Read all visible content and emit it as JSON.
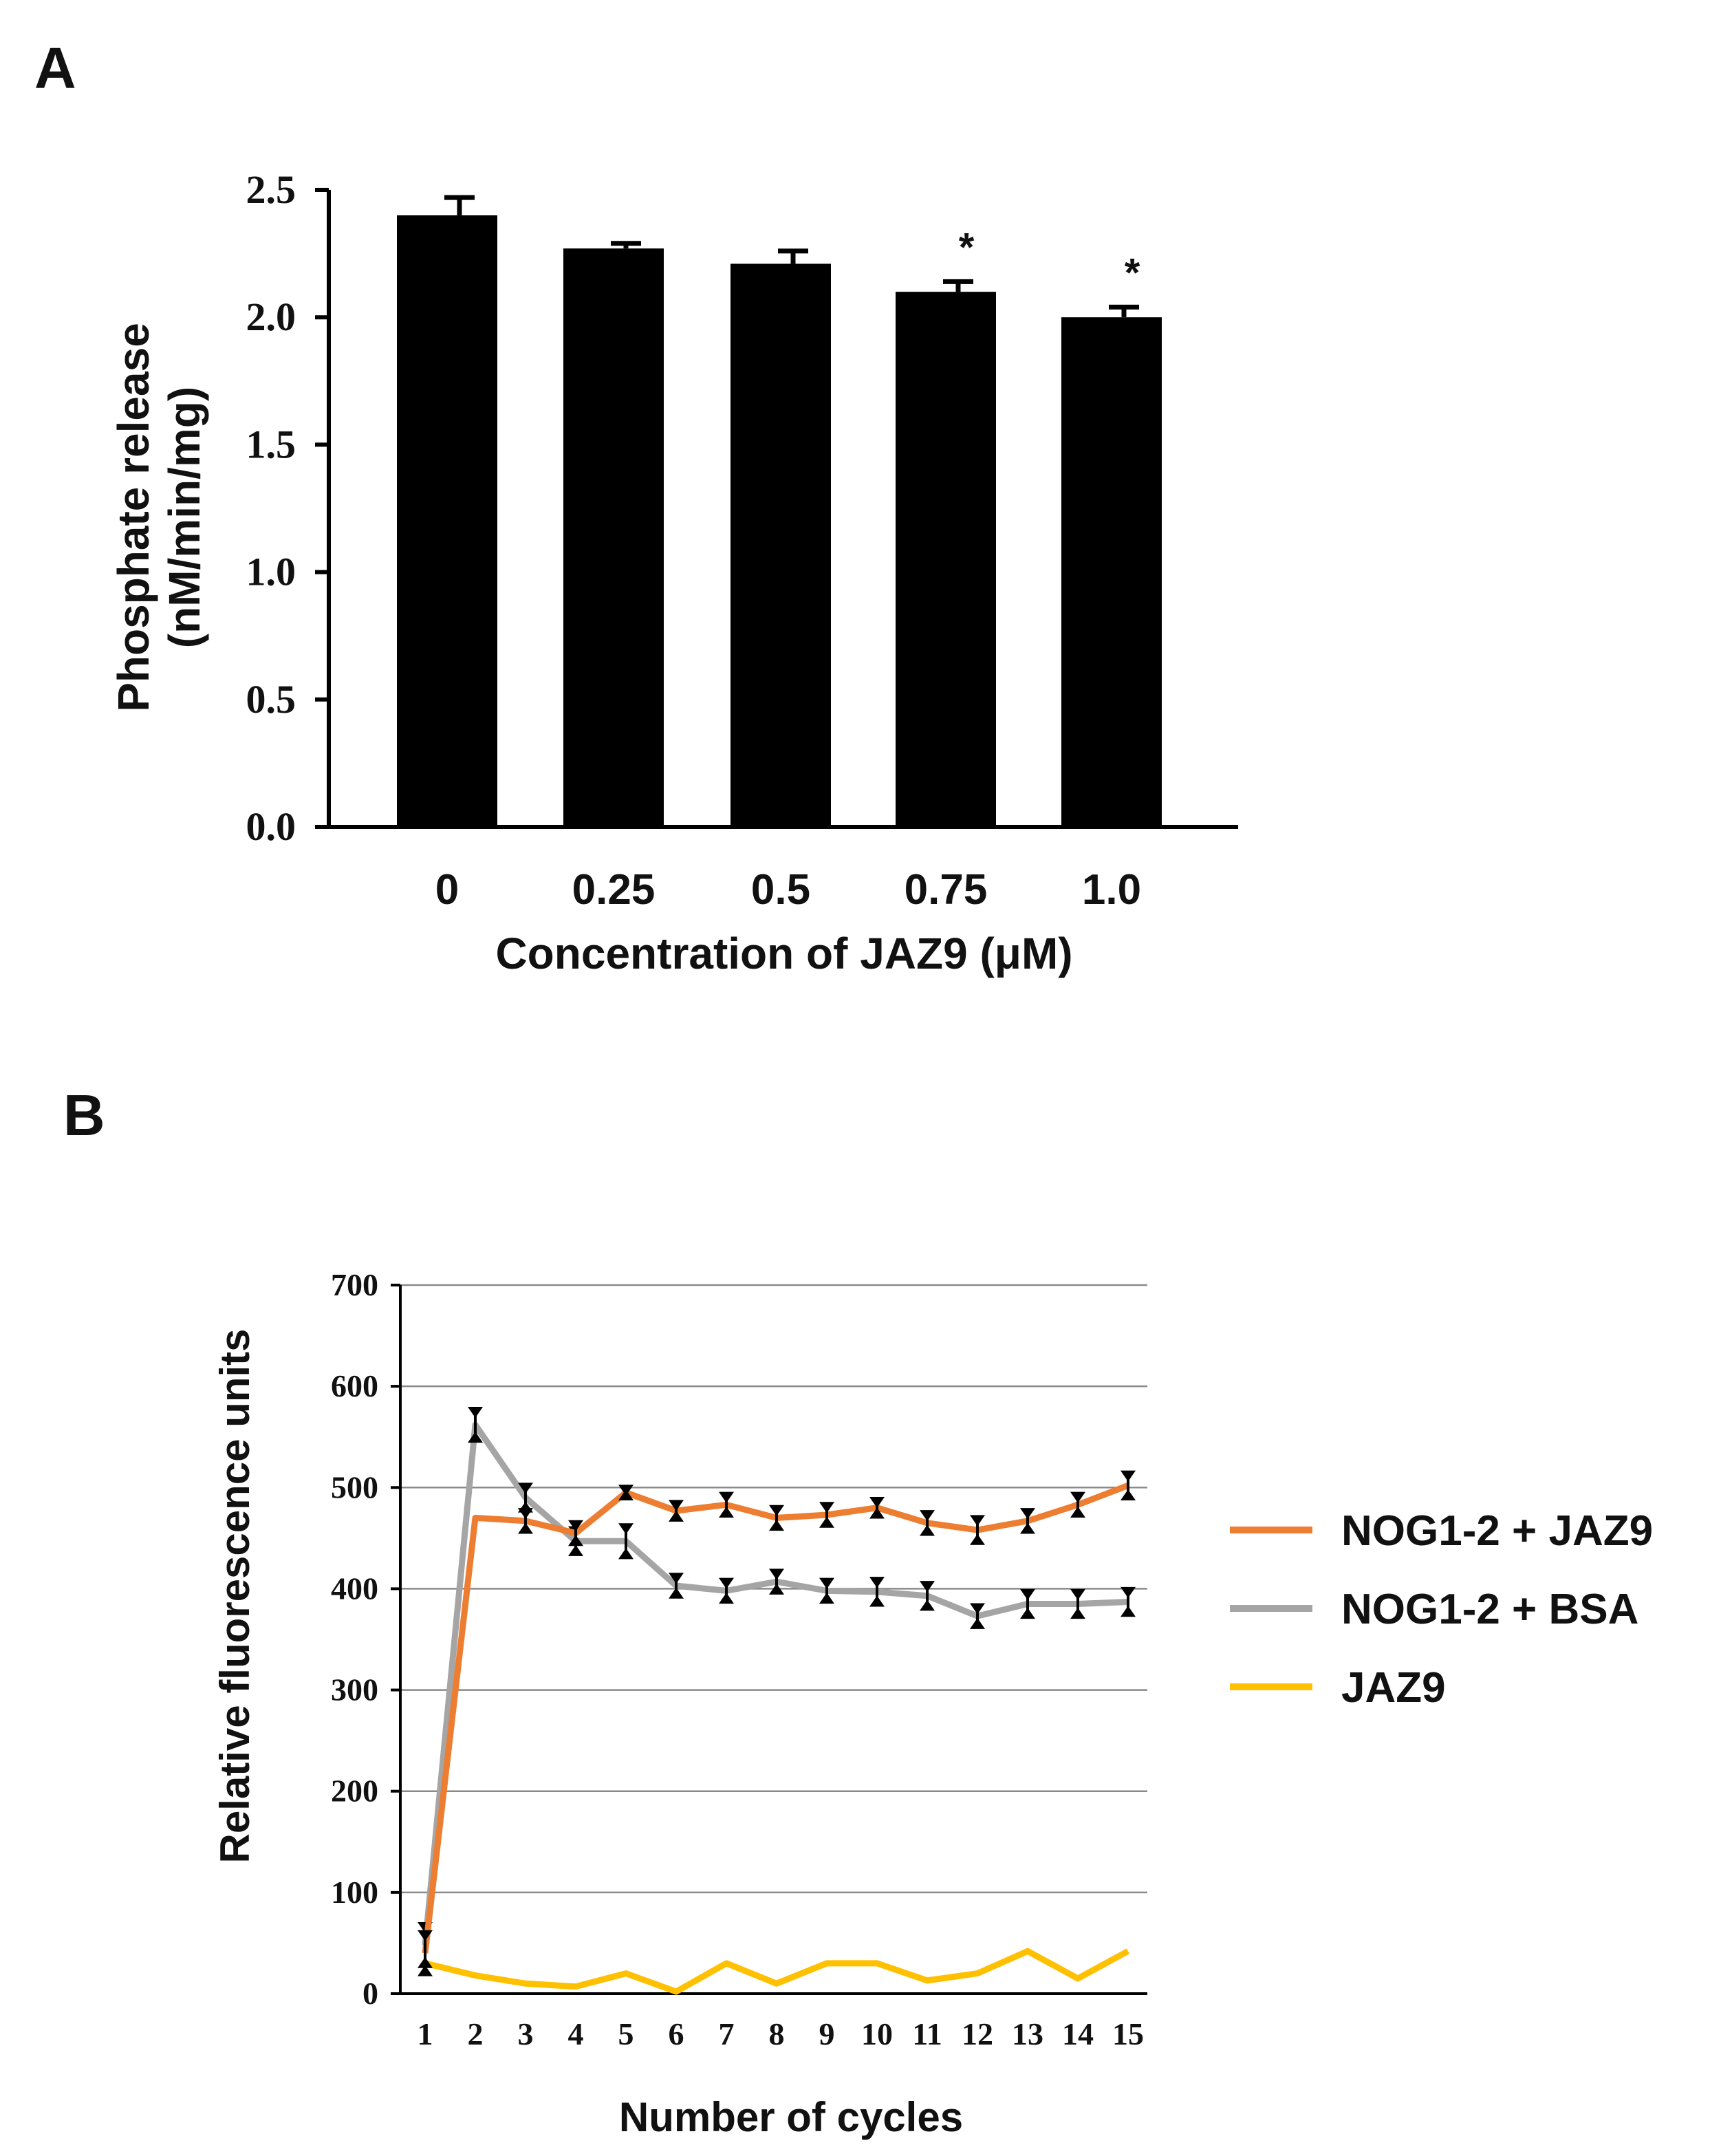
{
  "figure": {
    "panel_a_label": "A",
    "panel_b_label": "B"
  },
  "chart_data": [
    {
      "type": "bar",
      "title": "",
      "categories": [
        "0",
        "0.25",
        "0.5",
        "0.75",
        "1.0"
      ],
      "values": [
        2.4,
        2.27,
        2.21,
        2.1,
        2.0
      ],
      "errors": [
        0.07,
        0.02,
        0.05,
        0.04,
        0.04
      ],
      "significance": [
        "",
        "",
        "",
        "*",
        "*"
      ],
      "xlabel": "Concentration of JAZ9 (μM)",
      "ylabel_line1": "Phosphate release",
      "ylabel_line2": "(nM/min/mg)",
      "ylim": [
        0,
        2.5
      ],
      "yticks": [
        "0.0",
        "0.5",
        "1.0",
        "1.5",
        "2.0",
        "2.5"
      ],
      "bar_color": "#000000",
      "grid": false
    },
    {
      "type": "line",
      "title": "",
      "x": [
        1,
        2,
        3,
        4,
        5,
        6,
        7,
        8,
        9,
        10,
        11,
        12,
        13,
        14,
        15
      ],
      "xticks": [
        "1",
        "2",
        "3",
        "4",
        "5",
        "6",
        "7",
        "8",
        "9",
        "10",
        "11",
        "12",
        "13",
        "14",
        "15"
      ],
      "xlabel": "Number of cycles",
      "ylabel": "Relative fluorescence units",
      "ylim": [
        0,
        700
      ],
      "yticks": [
        "0",
        "100",
        "200",
        "300",
        "400",
        "500",
        "600",
        "700"
      ],
      "grid": true,
      "legend_position": "right",
      "series": [
        {
          "name": "NOG1-2 + JAZ9",
          "color": "#ED7D31",
          "values": [
            40,
            470,
            467,
            455,
            495,
            477,
            483,
            470,
            473,
            480,
            465,
            458,
            467,
            483,
            502
          ],
          "errors": [
            20,
            0,
            10,
            10,
            5,
            8,
            10,
            10,
            10,
            8,
            10,
            12,
            10,
            10,
            12
          ]
        },
        {
          "name": "NOG1-2 + BSA",
          "color": "#A5A5A5",
          "values": [
            48,
            562,
            490,
            447,
            447,
            403,
            398,
            407,
            398,
            397,
            393,
            373,
            385,
            385,
            387
          ],
          "errors": [
            20,
            15,
            12,
            12,
            15,
            10,
            10,
            10,
            10,
            12,
            12,
            10,
            12,
            12,
            12
          ]
        },
        {
          "name": "JAZ9",
          "color": "#FFC000",
          "values": [
            30,
            18,
            10,
            7,
            20,
            2,
            30,
            10,
            30,
            30,
            13,
            20,
            42,
            15,
            42
          ],
          "errors": [
            0,
            0,
            0,
            0,
            0,
            0,
            0,
            0,
            0,
            0,
            0,
            0,
            0,
            0,
            0
          ]
        }
      ]
    }
  ]
}
